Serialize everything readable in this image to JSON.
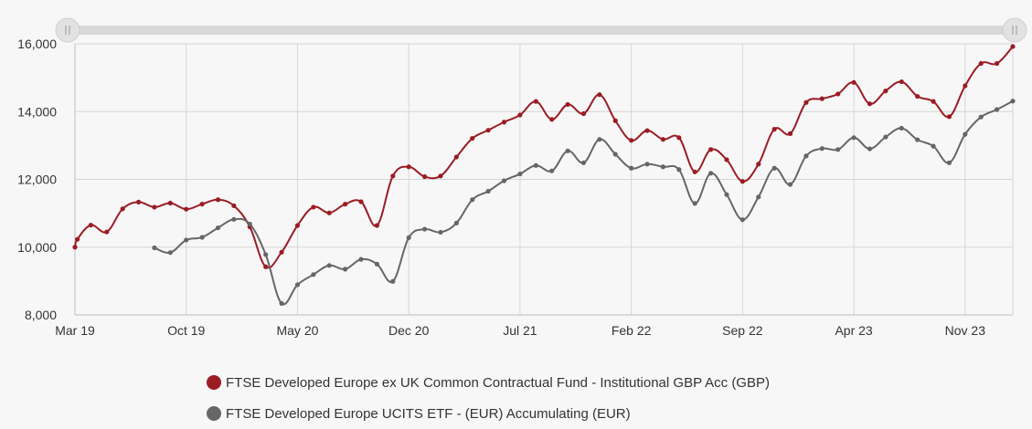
{
  "chart_data": {
    "type": "line",
    "title": "",
    "xlabel": "",
    "ylabel": "",
    "ylim": [
      8000,
      16000
    ],
    "yticks": [
      8000,
      10000,
      12000,
      14000,
      16000
    ],
    "ytick_labels": [
      "8,000",
      "10,000",
      "12,000",
      "14,000",
      "16,000"
    ],
    "x_start": "2019-03",
    "x_end": "2024-02",
    "xtick_labels": [
      "Mar 19",
      "Oct 19",
      "May 20",
      "Dec 20",
      "Jul 21",
      "Feb 22",
      "Sep 22",
      "Apr 23",
      "Nov 23"
    ],
    "xtick_dates": [
      "2019-03",
      "2019-10",
      "2020-05",
      "2020-12",
      "2021-07",
      "2022-02",
      "2022-09",
      "2023-04",
      "2023-11"
    ],
    "grid": true,
    "legend_position": "bottom",
    "range_selector": true,
    "series": [
      {
        "name": "FTSE Developed Europe ex UK Common Contractual Fund - Institutional GBP Acc (GBP)",
        "color": "#9b1c24",
        "x": [
          "2019-03",
          "2019-03",
          "2019-04",
          "2019-05",
          "2019-06",
          "2019-07",
          "2019-08",
          "2019-09",
          "2019-10",
          "2019-11",
          "2019-12",
          "2020-01",
          "2020-02",
          "2020-03",
          "2020-04",
          "2020-05",
          "2020-06",
          "2020-07",
          "2020-08",
          "2020-09",
          "2020-10",
          "2020-11",
          "2020-12",
          "2021-01",
          "2021-02",
          "2021-03",
          "2021-04",
          "2021-05",
          "2021-06",
          "2021-07",
          "2021-08",
          "2021-09",
          "2021-10",
          "2021-11",
          "2021-12",
          "2022-01",
          "2022-02",
          "2022-03",
          "2022-04",
          "2022-05",
          "2022-06",
          "2022-07",
          "2022-08",
          "2022-09",
          "2022-10",
          "2022-11",
          "2022-12",
          "2023-01",
          "2023-02",
          "2023-03",
          "2023-04",
          "2023-05",
          "2023-06",
          "2023-07",
          "2023-08",
          "2023-09",
          "2023-10",
          "2023-11",
          "2023-12",
          "2024-01",
          "2024-02"
        ],
        "values": [
          10000,
          10230,
          10650,
          10450,
          11130,
          11330,
          11180,
          11300,
          11120,
          11270,
          11400,
          11220,
          10600,
          9420,
          9850,
          10640,
          11180,
          11010,
          11270,
          11340,
          10640,
          12100,
          12370,
          12080,
          12100,
          12660,
          13210,
          13450,
          13690,
          13900,
          14300,
          13770,
          14210,
          13940,
          14500,
          13730,
          13150,
          13440,
          13180,
          13230,
          12220,
          12880,
          12580,
          11940,
          12450,
          13480,
          13350,
          14270,
          14380,
          14520,
          14860,
          14230,
          14610,
          14880,
          14450,
          14300,
          13850,
          14760,
          15420,
          15420,
          15920
        ]
      },
      {
        "name": "FTSE Developed Europe UCITS ETF - (EUR) Accumulating (EUR)",
        "color": "#666666",
        "x": [
          "2019-08",
          "2019-09",
          "2019-10",
          "2019-11",
          "2019-12",
          "2020-01",
          "2020-02",
          "2020-03",
          "2020-04",
          "2020-05",
          "2020-06",
          "2020-07",
          "2020-08",
          "2020-09",
          "2020-10",
          "2020-11",
          "2020-12",
          "2021-01",
          "2021-02",
          "2021-03",
          "2021-04",
          "2021-05",
          "2021-06",
          "2021-07",
          "2021-08",
          "2021-09",
          "2021-10",
          "2021-11",
          "2021-12",
          "2022-01",
          "2022-02",
          "2022-03",
          "2022-04",
          "2022-05",
          "2022-06",
          "2022-07",
          "2022-08",
          "2022-09",
          "2022-10",
          "2022-11",
          "2022-12",
          "2023-01",
          "2023-02",
          "2023-03",
          "2023-04",
          "2023-05",
          "2023-06",
          "2023-07",
          "2023-08",
          "2023-09",
          "2023-10",
          "2023-11",
          "2023-12",
          "2024-01",
          "2024-02"
        ],
        "values": [
          9980,
          9840,
          10210,
          10290,
          10570,
          10820,
          10680,
          9780,
          8340,
          8890,
          9190,
          9460,
          9350,
          9640,
          9500,
          8990,
          10280,
          10530,
          10440,
          10710,
          11400,
          11650,
          11960,
          12160,
          12410,
          12250,
          12840,
          12490,
          13180,
          12740,
          12330,
          12450,
          12370,
          12290,
          11290,
          12180,
          11550,
          10810,
          11480,
          12330,
          11850,
          12690,
          12910,
          12880,
          13230,
          12900,
          13250,
          13510,
          13170,
          12980,
          12490,
          13330,
          13840,
          14060,
          14310
        ]
      }
    ]
  }
}
